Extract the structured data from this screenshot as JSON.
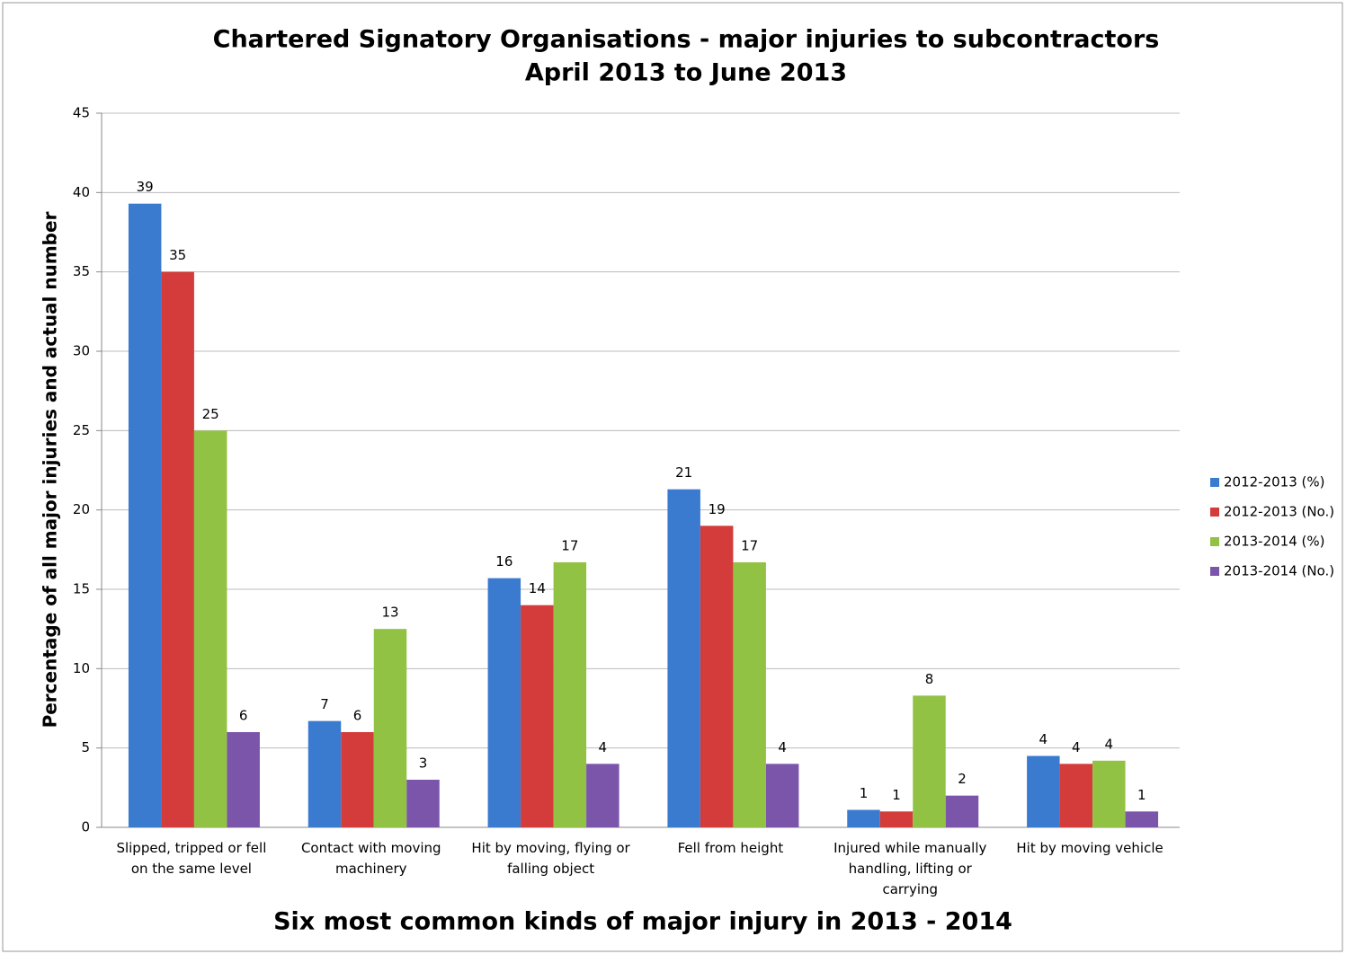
{
  "chart_data": {
    "type": "bar",
    "title": "Chartered Signatory Organisations - major injuries to subcontractors",
    "subtitle": "April 2013 to June 2013",
    "x_label": "Six most common kinds of major injury in 2013  - 2014",
    "y_label": "Percentage of all major injuries and actual number",
    "categories": [
      "Slipped, tripped or fell on the same level",
      "Contact with moving machinery",
      "Hit by moving, flying or falling object",
      "Fell from height",
      "Injured while manually handling, lifting or carrying",
      "Hit by moving vehicle"
    ],
    "series": [
      {
        "name": "2012-2013 (%)",
        "color": "#3a7bd0",
        "values": [
          39.3,
          6.7,
          15.7,
          21.3,
          1.1,
          4.5
        ],
        "value_labels": [
          "39",
          "7",
          "16",
          "21",
          "1",
          "4"
        ]
      },
      {
        "name": "2012-2013 (No.)",
        "color": "#d33c3a",
        "values": [
          35,
          6,
          14,
          19,
          1,
          4
        ]
      },
      {
        "name": "2013-2014 (%)",
        "color": "#92c244",
        "values": [
          25,
          12.5,
          16.7,
          16.7,
          8.3,
          4.2
        ],
        "value_labels": [
          "25",
          "13",
          "17",
          "17",
          "8",
          "4"
        ]
      },
      {
        "name": "2013-2014 (No.)",
        "color": "#7b55aa",
        "values": [
          6,
          3,
          4,
          4,
          2,
          1
        ]
      }
    ],
    "ylim": [
      0,
      45
    ],
    "yticks": [
      0,
      5,
      10,
      15,
      20,
      25,
      30,
      35,
      40,
      45
    ],
    "grid": true,
    "legend": "right"
  }
}
